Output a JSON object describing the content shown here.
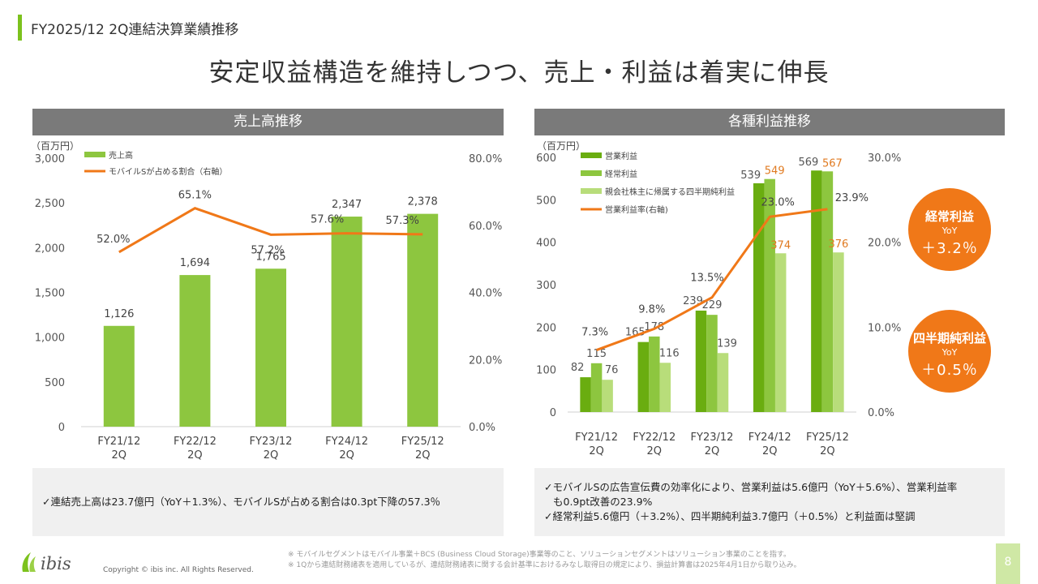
{
  "header": {
    "section": "FY2025/12 2Q連結決算業績推移",
    "headline": "安定収益構造を維持しつつ、売上・利益は着実に伸長"
  },
  "left": {
    "panel_title": "売上高推移",
    "unit": "（百万円）",
    "note": "✓連結売上高は23.7億円（YoY＋1.3%）、モバイルSが占める割合は0.3pt下降の57.3％"
  },
  "right": {
    "panel_title": "各種利益推移",
    "unit": "（百万円）",
    "notes": [
      "✓モバイルSの広告宣伝費の効率化により、営業利益は5.6億円（YoY＋5.6%）、営業利益率",
      "も0.9pt改善の23.9%",
      "✓経常利益5.6億円（＋3.2%）、四半期純利益3.7億円（＋0.5%）と利益面は堅調"
    ]
  },
  "badges": {
    "ordinary": {
      "title": "経常利益",
      "yoy": "YoY",
      "value": "＋3.2％"
    },
    "net": {
      "title": "四半期純利益",
      "yoy": "YoY",
      "value": "＋0.5％"
    }
  },
  "footer": {
    "footnote1": "※ モバイルセグメントはモバイル事業＋BCS (Business Cloud Storage)事業等のこと、ソリューションセグメントはソリューション事業のことを指す。",
    "footnote2": "※ 1Qから連結財務諸表を適用しているが、連結財務諸表に関する会計基準におけるみなし取得日の規定により、損益計算書は2025年4月1日から取り込み。",
    "copyright": "Copyright © ibis inc. All Rights Reserved.",
    "logo_text": "ibis",
    "page": "8"
  },
  "colors": {
    "green_dark": "#6aad10",
    "green_mid": "#8dc63f",
    "green_light": "#b8dd7a",
    "orange": "#f07818",
    "header_gray": "#7a7a7a"
  },
  "chart_data": [
    {
      "type": "bar",
      "categories": [
        "FY21/12\n2Q",
        "FY22/12\n2Q",
        "FY23/12\n2Q",
        "FY24/12\n2Q",
        "FY25/12\n2Q"
      ],
      "series": [
        {
          "name": "売上高",
          "axis": "left",
          "kind": "bar",
          "values": [
            1126,
            1694,
            1765,
            2347,
            2378
          ],
          "labels": [
            "1,126",
            "1,694",
            "1,765",
            "2,347",
            "2,378"
          ]
        },
        {
          "name": "モバイルSが占める割合（右軸）",
          "axis": "right",
          "kind": "line",
          "values": [
            52.0,
            65.1,
            57.2,
            57.6,
            57.3
          ],
          "labels": [
            "52.0%",
            "65.1%",
            "57.2%",
            "57.6%",
            "57.3%"
          ]
        }
      ],
      "ylim": [
        0,
        3000
      ],
      "yticks": [
        "0",
        "500",
        "1,000",
        "1,500",
        "2,000",
        "2,500",
        "3,000"
      ],
      "y2lim": [
        0,
        80
      ],
      "y2ticks": [
        "0.0%",
        "20.0%",
        "40.0%",
        "60.0%",
        "80.0%"
      ],
      "legend": "top-left"
    },
    {
      "type": "bar",
      "categories": [
        "FY21/12\n2Q",
        "FY22/12\n2Q",
        "FY23/12\n2Q",
        "FY24/12\n2Q",
        "FY25/12\n2Q"
      ],
      "series": [
        {
          "name": "営業利益",
          "axis": "left",
          "kind": "bar",
          "values": [
            82,
            165,
            239,
            539,
            569
          ],
          "labels": [
            "82",
            "165",
            "239",
            "539",
            "569"
          ]
        },
        {
          "name": "経常利益",
          "axis": "left",
          "kind": "bar",
          "values": [
            115,
            178,
            229,
            549,
            567
          ],
          "labels": [
            "115",
            "178",
            "229",
            "549",
            "567"
          ]
        },
        {
          "name": "親会社株主に帰属する四半期純利益",
          "axis": "left",
          "kind": "bar",
          "values": [
            76,
            116,
            139,
            374,
            376
          ],
          "labels": [
            "76",
            "116",
            "139",
            "374",
            "376"
          ]
        },
        {
          "name": "営業利益率(右軸)",
          "axis": "right",
          "kind": "line",
          "values": [
            7.3,
            9.8,
            13.5,
            23.0,
            23.9
          ],
          "labels": [
            "7.3%",
            "9.8%",
            "13.5%",
            "23.0%",
            "23.9%"
          ]
        }
      ],
      "ylim": [
        0,
        600
      ],
      "yticks": [
        "0",
        "100",
        "200",
        "300",
        "400",
        "500",
        "600"
      ],
      "y2lim": [
        0,
        30
      ],
      "y2ticks": [
        "0.0%",
        "10.0%",
        "20.0%",
        "30.0%"
      ],
      "legend": "top-left"
    }
  ]
}
